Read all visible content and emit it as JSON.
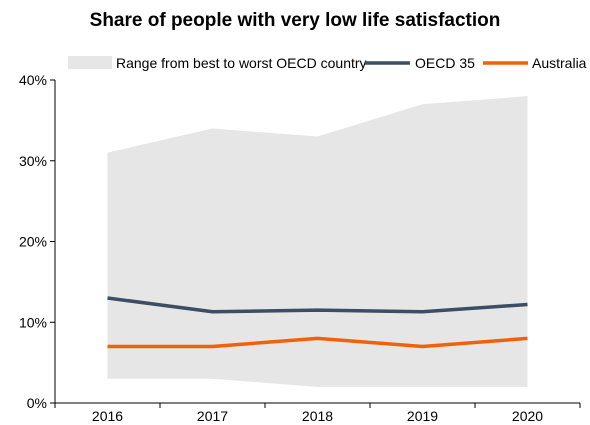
{
  "chart_data": {
    "type": "line",
    "title": "Share of people with very low life satisfaction",
    "xlabel": "",
    "ylabel": "",
    "categories": [
      "2016",
      "2017",
      "2018",
      "2019",
      "2020"
    ],
    "ylim": [
      0,
      40
    ],
    "yticks": [
      0,
      10,
      20,
      30,
      40
    ],
    "ytick_labels": [
      "0%",
      "10%",
      "20%",
      "30%",
      "40%"
    ],
    "grid": false,
    "legend_position": "top",
    "range": {
      "name": "Range from best to worst OECD country",
      "color": "#e6e6e6",
      "low": [
        3,
        3,
        2,
        2,
        2
      ],
      "high": [
        31,
        34,
        33,
        37,
        38
      ]
    },
    "series": [
      {
        "name": "OECD 35",
        "color": "#3c4e63",
        "values": [
          13.0,
          11.3,
          11.5,
          11.3,
          12.2
        ]
      },
      {
        "name": "Australia",
        "color": "#f0620a",
        "values": [
          7.0,
          7.0,
          8.0,
          7.0,
          8.0
        ]
      }
    ]
  }
}
